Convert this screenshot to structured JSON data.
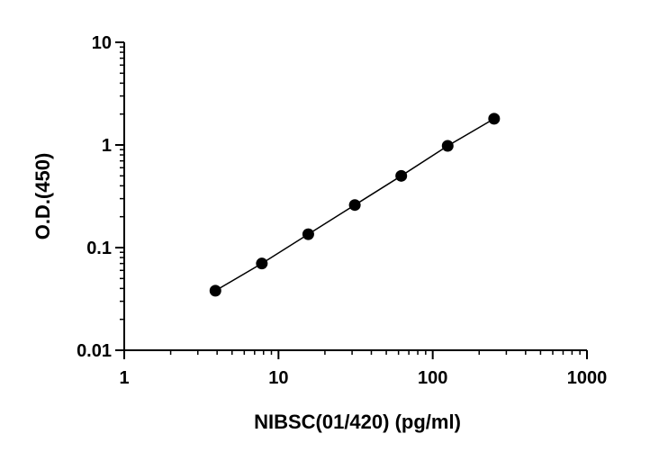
{
  "chart_data": {
    "type": "scatter",
    "title": "",
    "xlabel": "NIBSC(01/420) (pg/ml)",
    "ylabel": "O.D.(450)",
    "x_scale": "log",
    "y_scale": "log",
    "xlim": [
      1,
      1000
    ],
    "ylim": [
      0.01,
      10
    ],
    "x_ticks": [
      {
        "value": 1,
        "label": "1"
      },
      {
        "value": 10,
        "label": "10"
      },
      {
        "value": 100,
        "label": "100"
      },
      {
        "value": 1000,
        "label": "1000"
      }
    ],
    "y_ticks": [
      {
        "value": 0.01,
        "label": "0.01"
      },
      {
        "value": 0.1,
        "label": "0.1"
      },
      {
        "value": 1,
        "label": "1"
      },
      {
        "value": 10,
        "label": "10"
      }
    ],
    "grid": false,
    "legend": false,
    "series": [
      {
        "x": [
          3.9,
          7.8,
          15.6,
          31.25,
          62.5,
          125,
          250
        ],
        "y": [
          0.038,
          0.07,
          0.135,
          0.26,
          0.5,
          0.98,
          1.8
        ],
        "marker": "filled-circle",
        "fit_line": true,
        "color": "#000000"
      }
    ]
  }
}
